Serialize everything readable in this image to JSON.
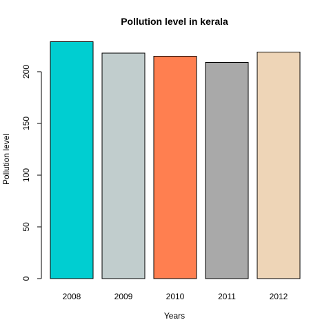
{
  "chart_data": {
    "type": "bar",
    "title": "Pollution level in kerala",
    "xlabel": "Years",
    "ylabel": "Pollution level",
    "categories": [
      "2008",
      "2009",
      "2010",
      "2011",
      "2012"
    ],
    "values": [
      229,
      218,
      215,
      209,
      219
    ],
    "colors": [
      "#00CED1",
      "#C1CDCD",
      "#FF7F50",
      "#A9A9A9",
      "#EED5B7"
    ],
    "ylim": [
      0,
      230
    ],
    "yticks": [
      0,
      50,
      100,
      150,
      200
    ],
    "grid": false,
    "legend": false
  }
}
